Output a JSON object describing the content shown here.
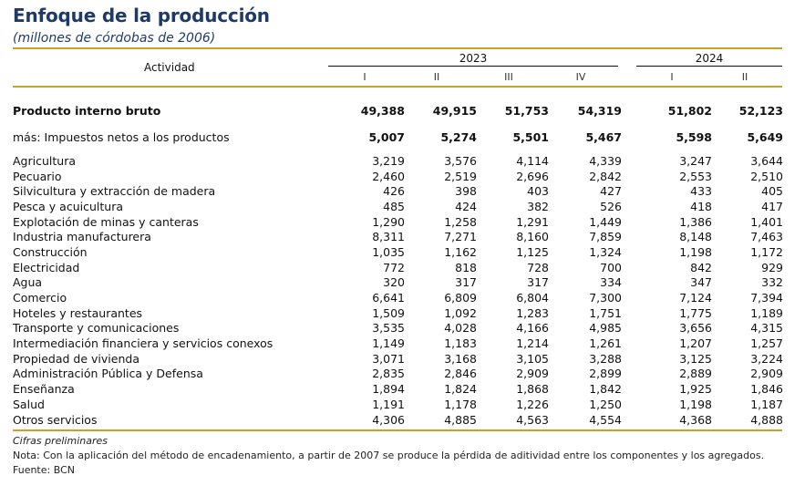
{
  "header": {
    "title": "Enfoque de la producción",
    "subtitle": "(millones de córdobas de 2006)",
    "activity_label": "Actividad",
    "year_2023": "2023",
    "year_2024": "2024",
    "quarters": [
      "I",
      "II",
      "III",
      "IV",
      "I",
      "II"
    ]
  },
  "rows": [
    {
      "label": "Producto interno bruto",
      "values": [
        "49,388",
        "49,915",
        "51,753",
        "54,319",
        "51,802",
        "52,123"
      ]
    },
    {
      "label": "más: Impuestos netos a los productos",
      "values": [
        "5,007",
        "5,274",
        "5,501",
        "5,467",
        "5,598",
        "5,649"
      ]
    },
    {
      "label": "Agricultura",
      "values": [
        "3,219",
        "3,576",
        "4,114",
        "4,339",
        "3,247",
        "3,644"
      ]
    },
    {
      "label": "Pecuario",
      "values": [
        "2,460",
        "2,519",
        "2,696",
        "2,842",
        "2,553",
        "2,510"
      ]
    },
    {
      "label": "Silvicultura y extracción de madera",
      "values": [
        "426",
        "398",
        "403",
        "427",
        "433",
        "405"
      ]
    },
    {
      "label": "Pesca y acuicultura",
      "values": [
        "485",
        "424",
        "382",
        "526",
        "418",
        "417"
      ]
    },
    {
      "label": "Explotación de minas y canteras",
      "values": [
        "1,290",
        "1,258",
        "1,291",
        "1,449",
        "1,386",
        "1,401"
      ]
    },
    {
      "label": "Industria manufacturera",
      "values": [
        "8,311",
        "7,271",
        "8,160",
        "7,859",
        "8,148",
        "7,463"
      ]
    },
    {
      "label": "Construcción",
      "values": [
        "1,035",
        "1,162",
        "1,125",
        "1,324",
        "1,198",
        "1,172"
      ]
    },
    {
      "label": "Electricidad",
      "values": [
        "772",
        "818",
        "728",
        "700",
        "842",
        "929"
      ]
    },
    {
      "label": "Agua",
      "values": [
        "320",
        "317",
        "317",
        "334",
        "347",
        "332"
      ]
    },
    {
      "label": "Comercio",
      "values": [
        "6,641",
        "6,809",
        "6,804",
        "7,300",
        "7,124",
        "7,394"
      ]
    },
    {
      "label": "Hoteles y restaurantes",
      "values": [
        "1,509",
        "1,092",
        "1,283",
        "1,751",
        "1,775",
        "1,189"
      ]
    },
    {
      "label": "Transporte y comunicaciones",
      "values": [
        "3,535",
        "4,028",
        "4,166",
        "4,985",
        "3,656",
        "4,315"
      ]
    },
    {
      "label": "Intermediación financiera y servicios conexos",
      "values": [
        "1,149",
        "1,183",
        "1,214",
        "1,261",
        "1,207",
        "1,257"
      ]
    },
    {
      "label": "Propiedad de vivienda",
      "values": [
        "3,071",
        "3,168",
        "3,105",
        "3,288",
        "3,125",
        "3,224"
      ]
    },
    {
      "label": "Administración Pública y Defensa",
      "values": [
        "2,835",
        "2,846",
        "2,909",
        "2,899",
        "2,889",
        "2,909"
      ]
    },
    {
      "label": "Enseñanza",
      "values": [
        "1,894",
        "1,824",
        "1,868",
        "1,842",
        "1,925",
        "1,846"
      ]
    },
    {
      "label": "Salud",
      "values": [
        "1,191",
        "1,178",
        "1,226",
        "1,250",
        "1,198",
        "1,187"
      ]
    },
    {
      "label": "Otros servicios",
      "values": [
        "4,306",
        "4,885",
        "4,563",
        "4,554",
        "4,368",
        "4,888"
      ]
    }
  ],
  "notes": {
    "line1": "Cifras preliminares",
    "line2": "Nota: Con la aplicación del método de encadenamiento, a partir de 2007 se produce la pérdida de aditividad entre los componentes y los agregados.",
    "line3": "Fuente: BCN"
  }
}
